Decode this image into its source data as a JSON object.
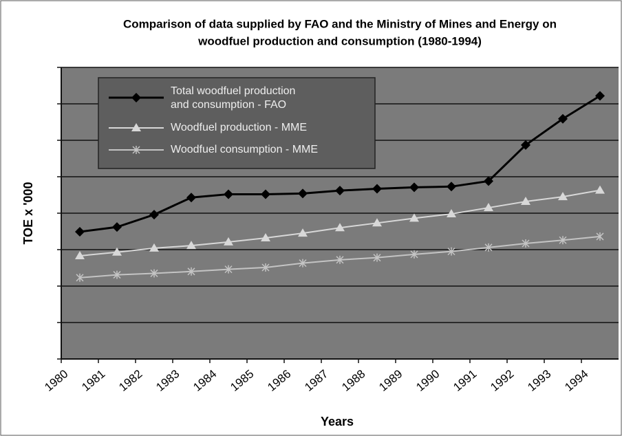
{
  "chart_data": {
    "type": "line",
    "title": "Comparison of data supplied by FAO and the Ministry of Mines and Energy on woodfuel production and consumption (1980-1994)",
    "xlabel": "Years",
    "ylabel": "TOE x '000",
    "categories": [
      "1980",
      "1981",
      "1982",
      "1983",
      "1984",
      "1985",
      "1986",
      "1987",
      "1988",
      "1989",
      "1990",
      "1991",
      "1992",
      "1993",
      "1994"
    ],
    "series": [
      {
        "name": "Total woodfuel production and consumption - FAO",
        "color": "#000000",
        "marker": "diamond",
        "values": [
          3.49,
          3.62,
          3.96,
          4.43,
          4.52,
          4.52,
          4.54,
          4.62,
          4.67,
          4.71,
          4.73,
          4.88,
          5.87,
          6.59,
          7.22
        ]
      },
      {
        "name": "Woodfuel production - MME",
        "color": "#d8d8d8",
        "marker": "triangle",
        "values": [
          2.83,
          2.93,
          3.04,
          3.11,
          3.21,
          3.32,
          3.45,
          3.6,
          3.73,
          3.86,
          3.98,
          4.15,
          4.32,
          4.45,
          4.63
        ]
      },
      {
        "name": "Woodfuel consumption - MME",
        "color": "#c4c4c4",
        "marker": "star",
        "values": [
          2.23,
          2.31,
          2.35,
          2.4,
          2.46,
          2.51,
          2.63,
          2.72,
          2.78,
          2.87,
          2.95,
          3.06,
          3.17,
          3.26,
          3.36
        ]
      }
    ],
    "ylim": [
      0,
      8
    ],
    "yticks": [
      0,
      1,
      2,
      3,
      4,
      5,
      6,
      7,
      8
    ],
    "grid": true,
    "legend": "upper left"
  }
}
